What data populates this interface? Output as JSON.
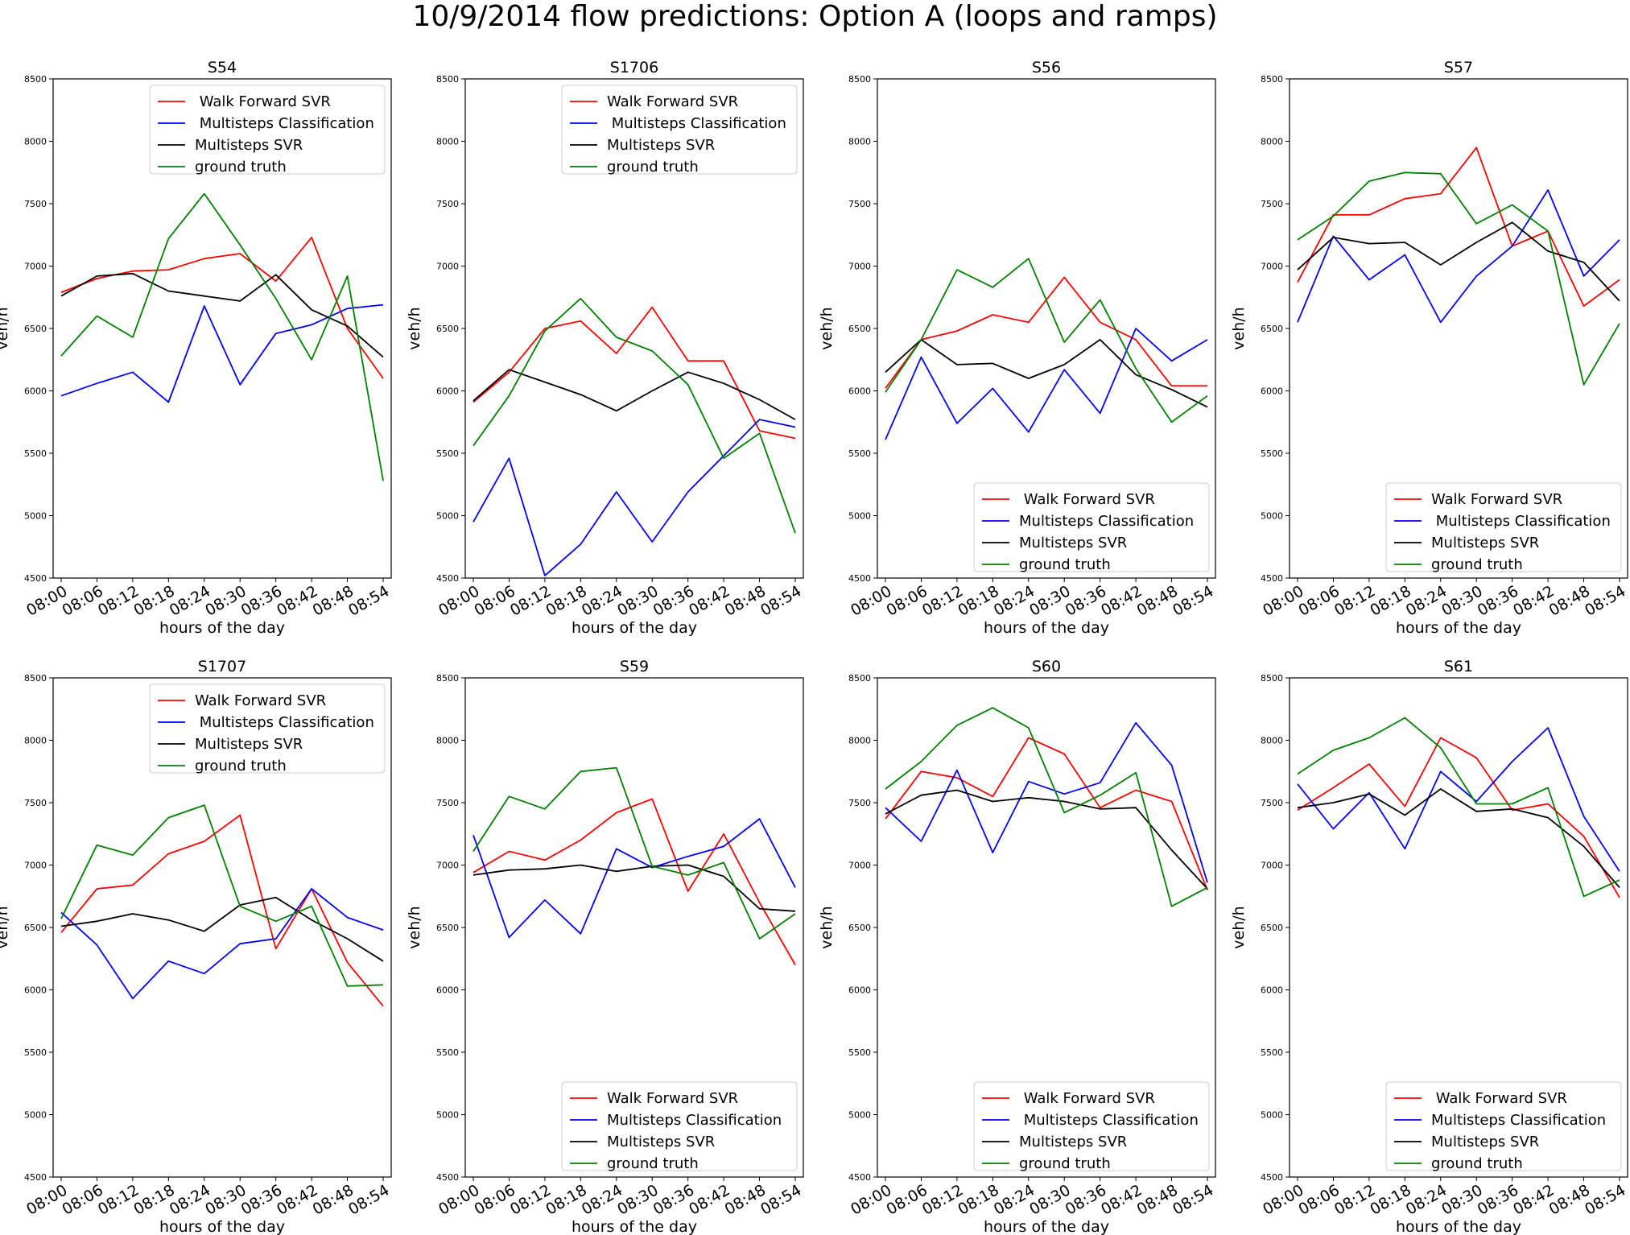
{
  "figure": {
    "title": "10/9/2014 flow predictions: Option A (loops and ramps)"
  },
  "colors": {
    "walk_forward_svr": "#ff0000",
    "multisteps_classification": "#0000ff",
    "multisteps_svr": "#000000",
    "ground_truth": "#008000"
  },
  "chart_data": [
    {
      "type": "line",
      "title": "S54",
      "xlabel": "hours of the day",
      "ylabel": "veh/h",
      "ylim": [
        4500,
        8500
      ],
      "yticks": [
        "4500",
        "5000",
        "5500",
        "6000",
        "6500",
        "7000",
        "7500",
        "8000",
        "8500"
      ],
      "categories": [
        "08:00",
        "08:06",
        "08:12",
        "08:18",
        "08:24",
        "08:30",
        "08:36",
        "08:42",
        "08:48",
        "08:54"
      ],
      "legend_position": "top-right",
      "series": [
        {
          "name": " Walk Forward SVR",
          "color": "#ff0000",
          "values": [
            6790,
            6900,
            6960,
            6970,
            7060,
            7100,
            6880,
            7230,
            6500,
            6100
          ]
        },
        {
          "name": " Multisteps Classification",
          "color": "#0000ff",
          "values": [
            5960,
            6060,
            6150,
            5910,
            6680,
            6050,
            6460,
            6530,
            6660,
            6690
          ]
        },
        {
          "name": "Multisteps SVR",
          "color": "#000000",
          "values": [
            6760,
            6920,
            6940,
            6800,
            6760,
            6720,
            6930,
            6650,
            6520,
            6270
          ]
        },
        {
          "name": "ground truth",
          "color": "#008000",
          "values": [
            6280,
            6600,
            6430,
            7220,
            7580,
            7170,
            6740,
            6250,
            6920,
            5280
          ]
        }
      ]
    },
    {
      "type": "line",
      "title": "S1706",
      "xlabel": "hours of the day",
      "ylabel": "veh/h",
      "ylim": [
        4500,
        8500
      ],
      "yticks": [
        "4500",
        "5000",
        "5500",
        "6000",
        "6500",
        "7000",
        "7500",
        "8000",
        "8500"
      ],
      "categories": [
        "08:00",
        "08:06",
        "08:12",
        "08:18",
        "08:24",
        "08:30",
        "08:36",
        "08:42",
        "08:48",
        "08:54"
      ],
      "legend_position": "top-right",
      "series": [
        {
          "name": "Walk Forward SVR",
          "color": "#ff0000",
          "values": [
            5910,
            6150,
            6500,
            6560,
            6300,
            6670,
            6240,
            6240,
            5680,
            5620
          ]
        },
        {
          "name": " Multisteps Classification",
          "color": "#0000ff",
          "values": [
            4950,
            5460,
            4520,
            4770,
            5190,
            4790,
            5190,
            5480,
            5770,
            5710
          ]
        },
        {
          "name": "Multisteps SVR",
          "color": "#000000",
          "values": [
            5920,
            6170,
            6070,
            5970,
            5840,
            6000,
            6150,
            6060,
            5930,
            5770
          ]
        },
        {
          "name": "ground truth",
          "color": "#008000",
          "values": [
            5560,
            5960,
            6480,
            6740,
            6430,
            6320,
            6050,
            5460,
            5660,
            4860
          ]
        }
      ]
    },
    {
      "type": "line",
      "title": "S56",
      "xlabel": "hours of the day",
      "ylabel": "veh/h",
      "ylim": [
        4500,
        8500
      ],
      "yticks": [
        "4500",
        "5000",
        "5500",
        "6000",
        "6500",
        "7000",
        "7500",
        "8000",
        "8500"
      ],
      "categories": [
        "08:00",
        "08:06",
        "08:12",
        "08:18",
        "08:24",
        "08:30",
        "08:36",
        "08:42",
        "08:48",
        "08:54"
      ],
      "legend_position": "bottom-right",
      "series": [
        {
          "name": " Walk Forward SVR",
          "color": "#ff0000",
          "values": [
            6020,
            6410,
            6480,
            6610,
            6550,
            6910,
            6550,
            6410,
            6040,
            6040
          ]
        },
        {
          "name": "Multisteps Classification",
          "color": "#0000ff",
          "values": [
            5610,
            6270,
            5740,
            6020,
            5670,
            6170,
            5820,
            6500,
            6240,
            6410
          ]
        },
        {
          "name": "Multisteps SVR",
          "color": "#000000",
          "values": [
            6150,
            6410,
            6210,
            6220,
            6100,
            6210,
            6410,
            6130,
            6010,
            5870
          ]
        },
        {
          "name": "ground truth",
          "color": "#008000",
          "values": [
            5990,
            6410,
            6970,
            6830,
            7060,
            6390,
            6730,
            6180,
            5750,
            5960
          ]
        }
      ]
    },
    {
      "type": "line",
      "title": "S57",
      "xlabel": "hours of the day",
      "ylabel": "veh/h",
      "ylim": [
        4500,
        8500
      ],
      "yticks": [
        "4500",
        "5000",
        "5500",
        "6000",
        "6500",
        "7000",
        "7500",
        "8000",
        "8500"
      ],
      "categories": [
        "08:00",
        "08:06",
        "08:12",
        "08:18",
        "08:24",
        "08:30",
        "08:36",
        "08:42",
        "08:48",
        "08:54"
      ],
      "legend_position": "bottom-right",
      "series": [
        {
          "name": "Walk Forward SVR",
          "color": "#ff0000",
          "values": [
            6870,
            7410,
            7410,
            7540,
            7580,
            7950,
            7160,
            7280,
            6680,
            6890
          ]
        },
        {
          "name": " Multisteps Classification",
          "color": "#0000ff",
          "values": [
            6550,
            7240,
            6890,
            7090,
            6550,
            6920,
            7160,
            7610,
            6920,
            7210
          ]
        },
        {
          "name": "Multisteps SVR",
          "color": "#000000",
          "values": [
            6970,
            7230,
            7180,
            7190,
            7010,
            7190,
            7350,
            7120,
            7030,
            6720
          ]
        },
        {
          "name": "ground truth",
          "color": "#008000",
          "values": [
            7210,
            7400,
            7680,
            7750,
            7740,
            7340,
            7490,
            7280,
            6050,
            6540
          ]
        }
      ]
    },
    {
      "type": "line",
      "title": "S1707",
      "xlabel": "hours of the day",
      "ylabel": "veh/h",
      "ylim": [
        4500,
        8500
      ],
      "yticks": [
        "4500",
        "5000",
        "5500",
        "6000",
        "6500",
        "7000",
        "7500",
        "8000",
        "8500"
      ],
      "categories": [
        "08:00",
        "08:06",
        "08:12",
        "08:18",
        "08:24",
        "08:30",
        "08:36",
        "08:42",
        "08:48",
        "08:54"
      ],
      "legend_position": "top-right",
      "series": [
        {
          "name": "Walk Forward SVR",
          "color": "#ff0000",
          "values": [
            6460,
            6810,
            6840,
            7090,
            7190,
            7400,
            6330,
            6810,
            6220,
            5870
          ]
        },
        {
          "name": " Multisteps Classification",
          "color": "#0000ff",
          "values": [
            6620,
            6360,
            5930,
            6230,
            6130,
            6370,
            6410,
            6810,
            6580,
            6480
          ]
        },
        {
          "name": "Multisteps SVR",
          "color": "#000000",
          "values": [
            6510,
            6550,
            6610,
            6560,
            6470,
            6680,
            6740,
            6560,
            6410,
            6230
          ]
        },
        {
          "name": "ground truth",
          "color": "#008000",
          "values": [
            6570,
            7160,
            7080,
            7380,
            7480,
            6670,
            6550,
            6670,
            6030,
            6040
          ]
        }
      ]
    },
    {
      "type": "line",
      "title": "S59",
      "xlabel": "hours of the day",
      "ylabel": "veh/h",
      "ylim": [
        4500,
        8500
      ],
      "yticks": [
        "4500",
        "5000",
        "5500",
        "6000",
        "6500",
        "7000",
        "7500",
        "8000",
        "8500"
      ],
      "categories": [
        "08:00",
        "08:06",
        "08:12",
        "08:18",
        "08:24",
        "08:30",
        "08:36",
        "08:42",
        "08:48",
        "08:54"
      ],
      "legend_position": "bottom-right",
      "series": [
        {
          "name": "Walk Forward SVR",
          "color": "#ff0000",
          "values": [
            6940,
            7110,
            7040,
            7200,
            7420,
            7530,
            6790,
            7250,
            6700,
            6200
          ]
        },
        {
          "name": "Multisteps Classification",
          "color": "#0000ff",
          "values": [
            7240,
            6420,
            6720,
            6450,
            7130,
            6980,
            7070,
            7150,
            7370,
            6820
          ]
        },
        {
          "name": "Multisteps SVR",
          "color": "#000000",
          "values": [
            6920,
            6960,
            6970,
            7000,
            6950,
            6990,
            7000,
            6910,
            6650,
            6630
          ]
        },
        {
          "name": "ground truth",
          "color": "#008000",
          "values": [
            7110,
            7550,
            7450,
            7750,
            7780,
            6990,
            6920,
            7020,
            6410,
            6610
          ]
        }
      ]
    },
    {
      "type": "line",
      "title": "S60",
      "xlabel": "hours of the day",
      "ylabel": "veh/h",
      "ylim": [
        4500,
        8500
      ],
      "yticks": [
        "4500",
        "5000",
        "5500",
        "6000",
        "6500",
        "7000",
        "7500",
        "8000",
        "8500"
      ],
      "categories": [
        "08:00",
        "08:06",
        "08:12",
        "08:18",
        "08:24",
        "08:30",
        "08:36",
        "08:42",
        "08:48",
        "08:54"
      ],
      "legend_position": "bottom-right",
      "series": [
        {
          "name": " Walk Forward SVR",
          "color": "#ff0000",
          "values": [
            7370,
            7750,
            7700,
            7550,
            8020,
            7890,
            7460,
            7600,
            7510,
            6800
          ]
        },
        {
          "name": " Multisteps Classification",
          "color": "#0000ff",
          "values": [
            7460,
            7190,
            7760,
            7100,
            7670,
            7570,
            7660,
            8140,
            7800,
            6860
          ]
        },
        {
          "name": "Multisteps SVR",
          "color": "#000000",
          "values": [
            7410,
            7560,
            7600,
            7510,
            7540,
            7510,
            7450,
            7460,
            7120,
            6810
          ]
        },
        {
          "name": "ground truth",
          "color": "#008000",
          "values": [
            7610,
            7830,
            8120,
            8260,
            8100,
            7420,
            7560,
            7740,
            6670,
            6820
          ]
        }
      ]
    },
    {
      "type": "line",
      "title": "S61",
      "xlabel": "hours of the day",
      "ylabel": "veh/h",
      "ylim": [
        4500,
        8500
      ],
      "yticks": [
        "4500",
        "5000",
        "5500",
        "6000",
        "6500",
        "7000",
        "7500",
        "8000",
        "8500"
      ],
      "categories": [
        "08:00",
        "08:06",
        "08:12",
        "08:18",
        "08:24",
        "08:30",
        "08:36",
        "08:42",
        "08:48",
        "08:54"
      ],
      "legend_position": "bottom-right",
      "series": [
        {
          "name": " Walk Forward SVR",
          "color": "#ff0000",
          "values": [
            7440,
            7620,
            7810,
            7470,
            8020,
            7860,
            7440,
            7490,
            7230,
            6740
          ]
        },
        {
          "name": "Multisteps Classification",
          "color": "#0000ff",
          "values": [
            7650,
            7290,
            7580,
            7130,
            7750,
            7510,
            7830,
            8100,
            7390,
            6950
          ]
        },
        {
          "name": "Multisteps SVR",
          "color": "#000000",
          "values": [
            7460,
            7500,
            7570,
            7400,
            7610,
            7430,
            7450,
            7380,
            7150,
            6820
          ]
        },
        {
          "name": "ground truth",
          "color": "#008000",
          "values": [
            7730,
            7920,
            8020,
            8180,
            7940,
            7490,
            7490,
            7620,
            6750,
            6880
          ]
        }
      ]
    }
  ]
}
